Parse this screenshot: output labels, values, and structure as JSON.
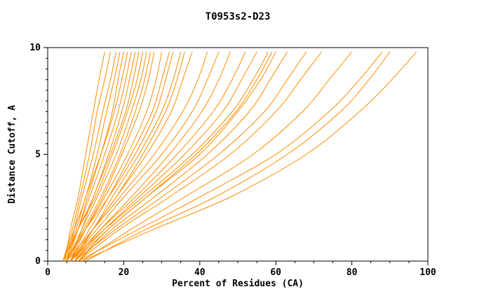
{
  "chart_data": {
    "type": "line",
    "title": "T0953s2-D23",
    "xlabel": "Percent of Residues (CA)",
    "ylabel": "Distance Cutoff, A",
    "xlim": [
      0,
      100
    ],
    "ylim": [
      0,
      10
    ],
    "xticks": [
      0,
      20,
      40,
      60,
      80,
      100
    ],
    "yticks": [
      0,
      5,
      10
    ],
    "x_minor_step": 5,
    "y_minor_step": 0.5,
    "grid": false,
    "legend": "none",
    "line_color": "#ff8c00",
    "axis_color": "#000000",
    "series": [
      {
        "points": [
          [
            4.5,
            0
          ],
          [
            6,
            1.5
          ],
          [
            8,
            3
          ],
          [
            10,
            5
          ],
          [
            12,
            7
          ],
          [
            13.5,
            8.5
          ],
          [
            15,
            9.8
          ]
        ]
      },
      {
        "points": [
          [
            4,
            0
          ],
          [
            6.5,
            1.5
          ],
          [
            8.5,
            3
          ],
          [
            11,
            5
          ],
          [
            13,
            7
          ],
          [
            15,
            8.5
          ],
          [
            16.5,
            9.8
          ]
        ]
      },
      {
        "points": [
          [
            5,
            0
          ],
          [
            7,
            1.5
          ],
          [
            9,
            3
          ],
          [
            12,
            5
          ],
          [
            14.5,
            7
          ],
          [
            16.5,
            8.5
          ],
          [
            18,
            9.8
          ]
        ]
      },
      {
        "points": [
          [
            4,
            0
          ],
          [
            7,
            1.5
          ],
          [
            10,
            3
          ],
          [
            13,
            5
          ],
          [
            15.5,
            7
          ],
          [
            17.5,
            8.5
          ],
          [
            19,
            9.8
          ]
        ]
      },
      {
        "points": [
          [
            5,
            0
          ],
          [
            8,
            1.5
          ],
          [
            10.5,
            3
          ],
          [
            14,
            5
          ],
          [
            17,
            7
          ],
          [
            18.5,
            8.5
          ],
          [
            20,
            9.8
          ]
        ]
      },
      {
        "points": [
          [
            4,
            0
          ],
          [
            7.5,
            1.5
          ],
          [
            10,
            3
          ],
          [
            14,
            5
          ],
          [
            17.5,
            7
          ],
          [
            19.5,
            8.5
          ],
          [
            21,
            9.8
          ]
        ]
      },
      {
        "points": [
          [
            5,
            0
          ],
          [
            8,
            1.5
          ],
          [
            11,
            3
          ],
          [
            15,
            5
          ],
          [
            18.5,
            7
          ],
          [
            20.5,
            8.5
          ],
          [
            22,
            9.8
          ]
        ]
      },
      {
        "points": [
          [
            4.5,
            0
          ],
          [
            8,
            1.5
          ],
          [
            12,
            3
          ],
          [
            16,
            5
          ],
          [
            19.5,
            7
          ],
          [
            21.5,
            8.5
          ],
          [
            23,
            9.8
          ]
        ]
      },
      {
        "points": [
          [
            6,
            0
          ],
          [
            9,
            1.5
          ],
          [
            12,
            3
          ],
          [
            16.5,
            5
          ],
          [
            20.5,
            7
          ],
          [
            22.5,
            8.5
          ],
          [
            24,
            9.8
          ]
        ]
      },
      {
        "points": [
          [
            4,
            0
          ],
          [
            8,
            1.5
          ],
          [
            12.5,
            3
          ],
          [
            17,
            5
          ],
          [
            21,
            7
          ],
          [
            23.5,
            8.5
          ],
          [
            25,
            9.8
          ]
        ]
      },
      {
        "points": [
          [
            5,
            0
          ],
          [
            9,
            1.5
          ],
          [
            13,
            3
          ],
          [
            18,
            5
          ],
          [
            22,
            7
          ],
          [
            24.5,
            8.5
          ],
          [
            26,
            9.8
          ]
        ]
      },
      {
        "points": [
          [
            5,
            0
          ],
          [
            9.5,
            1.5
          ],
          [
            14,
            3
          ],
          [
            19,
            5
          ],
          [
            23,
            7
          ],
          [
            25.5,
            8.5
          ],
          [
            27,
            9.8
          ]
        ]
      },
      {
        "points": [
          [
            6,
            0
          ],
          [
            10,
            1.5
          ],
          [
            14.5,
            3
          ],
          [
            19.5,
            5
          ],
          [
            24,
            7
          ],
          [
            26.5,
            8.5
          ],
          [
            28,
            9.8
          ]
        ]
      },
      {
        "points": [
          [
            5,
            0
          ],
          [
            10,
            1.5
          ],
          [
            15,
            3
          ],
          [
            21,
            5
          ],
          [
            26,
            7
          ],
          [
            28.5,
            8.5
          ],
          [
            30,
            9.8
          ]
        ]
      },
      {
        "points": [
          [
            6,
            0
          ],
          [
            11,
            1.5
          ],
          [
            16,
            3
          ],
          [
            22,
            5
          ],
          [
            27.5,
            7
          ],
          [
            30,
            8.5
          ],
          [
            32,
            9.8
          ]
        ]
      },
      {
        "points": [
          [
            5,
            0
          ],
          [
            10,
            1.5
          ],
          [
            16,
            3
          ],
          [
            23,
            5
          ],
          [
            28.5,
            7
          ],
          [
            31,
            8.5
          ],
          [
            33,
            9.8
          ]
        ]
      },
      {
        "points": [
          [
            6,
            0
          ],
          [
            12,
            1.5
          ],
          [
            17,
            3
          ],
          [
            24,
            5
          ],
          [
            30,
            7
          ],
          [
            33,
            8.5
          ],
          [
            35,
            9.8
          ]
        ]
      },
      {
        "points": [
          [
            7,
            0
          ],
          [
            12,
            1.5
          ],
          [
            18,
            3
          ],
          [
            25,
            5
          ],
          [
            31,
            7
          ],
          [
            34,
            8.5
          ],
          [
            36,
            9.8
          ]
        ]
      },
      {
        "points": [
          [
            6,
            0
          ],
          [
            12,
            1.5
          ],
          [
            18,
            3
          ],
          [
            26,
            5
          ],
          [
            32.5,
            7
          ],
          [
            35.5,
            8.5
          ],
          [
            38,
            9.8
          ]
        ]
      },
      {
        "points": [
          [
            5,
            0
          ],
          [
            12,
            1.5
          ],
          [
            19,
            3
          ],
          [
            28,
            5
          ],
          [
            35.5,
            7
          ],
          [
            39.5,
            8.5
          ],
          [
            42,
            9.8
          ]
        ]
      },
      {
        "points": [
          [
            6,
            0
          ],
          [
            13,
            1.5
          ],
          [
            20,
            3
          ],
          [
            30,
            5
          ],
          [
            38,
            7
          ],
          [
            42,
            8.5
          ],
          [
            45,
            9.8
          ]
        ]
      },
      {
        "points": [
          [
            7,
            0
          ],
          [
            14,
            1.5
          ],
          [
            22,
            3
          ],
          [
            32,
            5
          ],
          [
            40.5,
            7
          ],
          [
            45,
            8.5
          ],
          [
            48,
            9.8
          ]
        ]
      },
      {
        "points": [
          [
            6,
            0
          ],
          [
            14,
            1.5
          ],
          [
            23,
            3
          ],
          [
            34,
            5
          ],
          [
            43.5,
            7
          ],
          [
            48.5,
            8.5
          ],
          [
            52,
            9.8
          ]
        ]
      },
      {
        "points": [
          [
            7,
            0
          ],
          [
            15,
            1.5
          ],
          [
            24,
            3
          ],
          [
            36,
            5
          ],
          [
            46,
            7
          ],
          [
            51,
            8.5
          ],
          [
            55,
            9.8
          ]
        ]
      },
      {
        "points": [
          [
            6,
            0
          ],
          [
            15,
            1.5
          ],
          [
            25,
            3
          ],
          [
            38,
            5
          ],
          [
            48.5,
            7
          ],
          [
            54,
            8.5
          ],
          [
            58,
            9.8
          ]
        ]
      },
      {
        "points": [
          [
            8,
            0
          ],
          [
            16,
            1.5
          ],
          [
            26,
            3
          ],
          [
            39,
            5
          ],
          [
            49.5,
            7
          ],
          [
            55,
            8.5
          ],
          [
            59,
            9.8
          ]
        ]
      },
      {
        "points": [
          [
            7,
            0
          ],
          [
            16,
            1.5
          ],
          [
            26,
            3
          ],
          [
            40,
            5
          ],
          [
            50,
            7
          ],
          [
            56,
            8.5
          ],
          [
            60,
            9.8
          ]
        ]
      },
      {
        "points": [
          [
            8,
            0
          ],
          [
            17,
            1.5
          ],
          [
            28,
            3
          ],
          [
            42,
            5
          ],
          [
            53,
            7
          ],
          [
            58.5,
            8.5
          ],
          [
            63,
            9.8
          ]
        ]
      },
      {
        "points": [
          [
            7,
            0
          ],
          [
            18,
            1.5
          ],
          [
            30,
            3
          ],
          [
            45,
            5
          ],
          [
            57,
            7
          ],
          [
            63,
            8.5
          ],
          [
            68,
            9.8
          ]
        ]
      },
      {
        "points": [
          [
            8,
            0
          ],
          [
            19,
            1.5
          ],
          [
            32,
            3
          ],
          [
            48,
            5
          ],
          [
            60,
            7
          ],
          [
            66.5,
            8.5
          ],
          [
            72,
            9.8
          ]
        ]
      },
      {
        "points": [
          [
            9,
            0
          ],
          [
            22,
            1.5
          ],
          [
            36,
            3
          ],
          [
            54,
            5
          ],
          [
            67,
            7
          ],
          [
            74,
            8.5
          ],
          [
            80,
            9.8
          ]
        ]
      },
      {
        "points": [
          [
            8,
            0
          ],
          [
            24,
            1.5
          ],
          [
            40,
            3
          ],
          [
            60,
            5
          ],
          [
            74,
            7
          ],
          [
            82,
            8.5
          ],
          [
            88,
            9.8
          ]
        ]
      },
      {
        "points": [
          [
            10,
            0
          ],
          [
            26,
            1.5
          ],
          [
            44,
            3
          ],
          [
            63,
            5
          ],
          [
            77,
            7
          ],
          [
            84.5,
            8.5
          ],
          [
            90,
            9.8
          ]
        ]
      },
      {
        "points": [
          [
            9,
            0
          ],
          [
            28,
            1.5
          ],
          [
            48,
            3
          ],
          [
            68,
            5
          ],
          [
            82,
            7
          ],
          [
            90.5,
            8.5
          ],
          [
            97,
            9.8
          ]
        ]
      }
    ]
  }
}
